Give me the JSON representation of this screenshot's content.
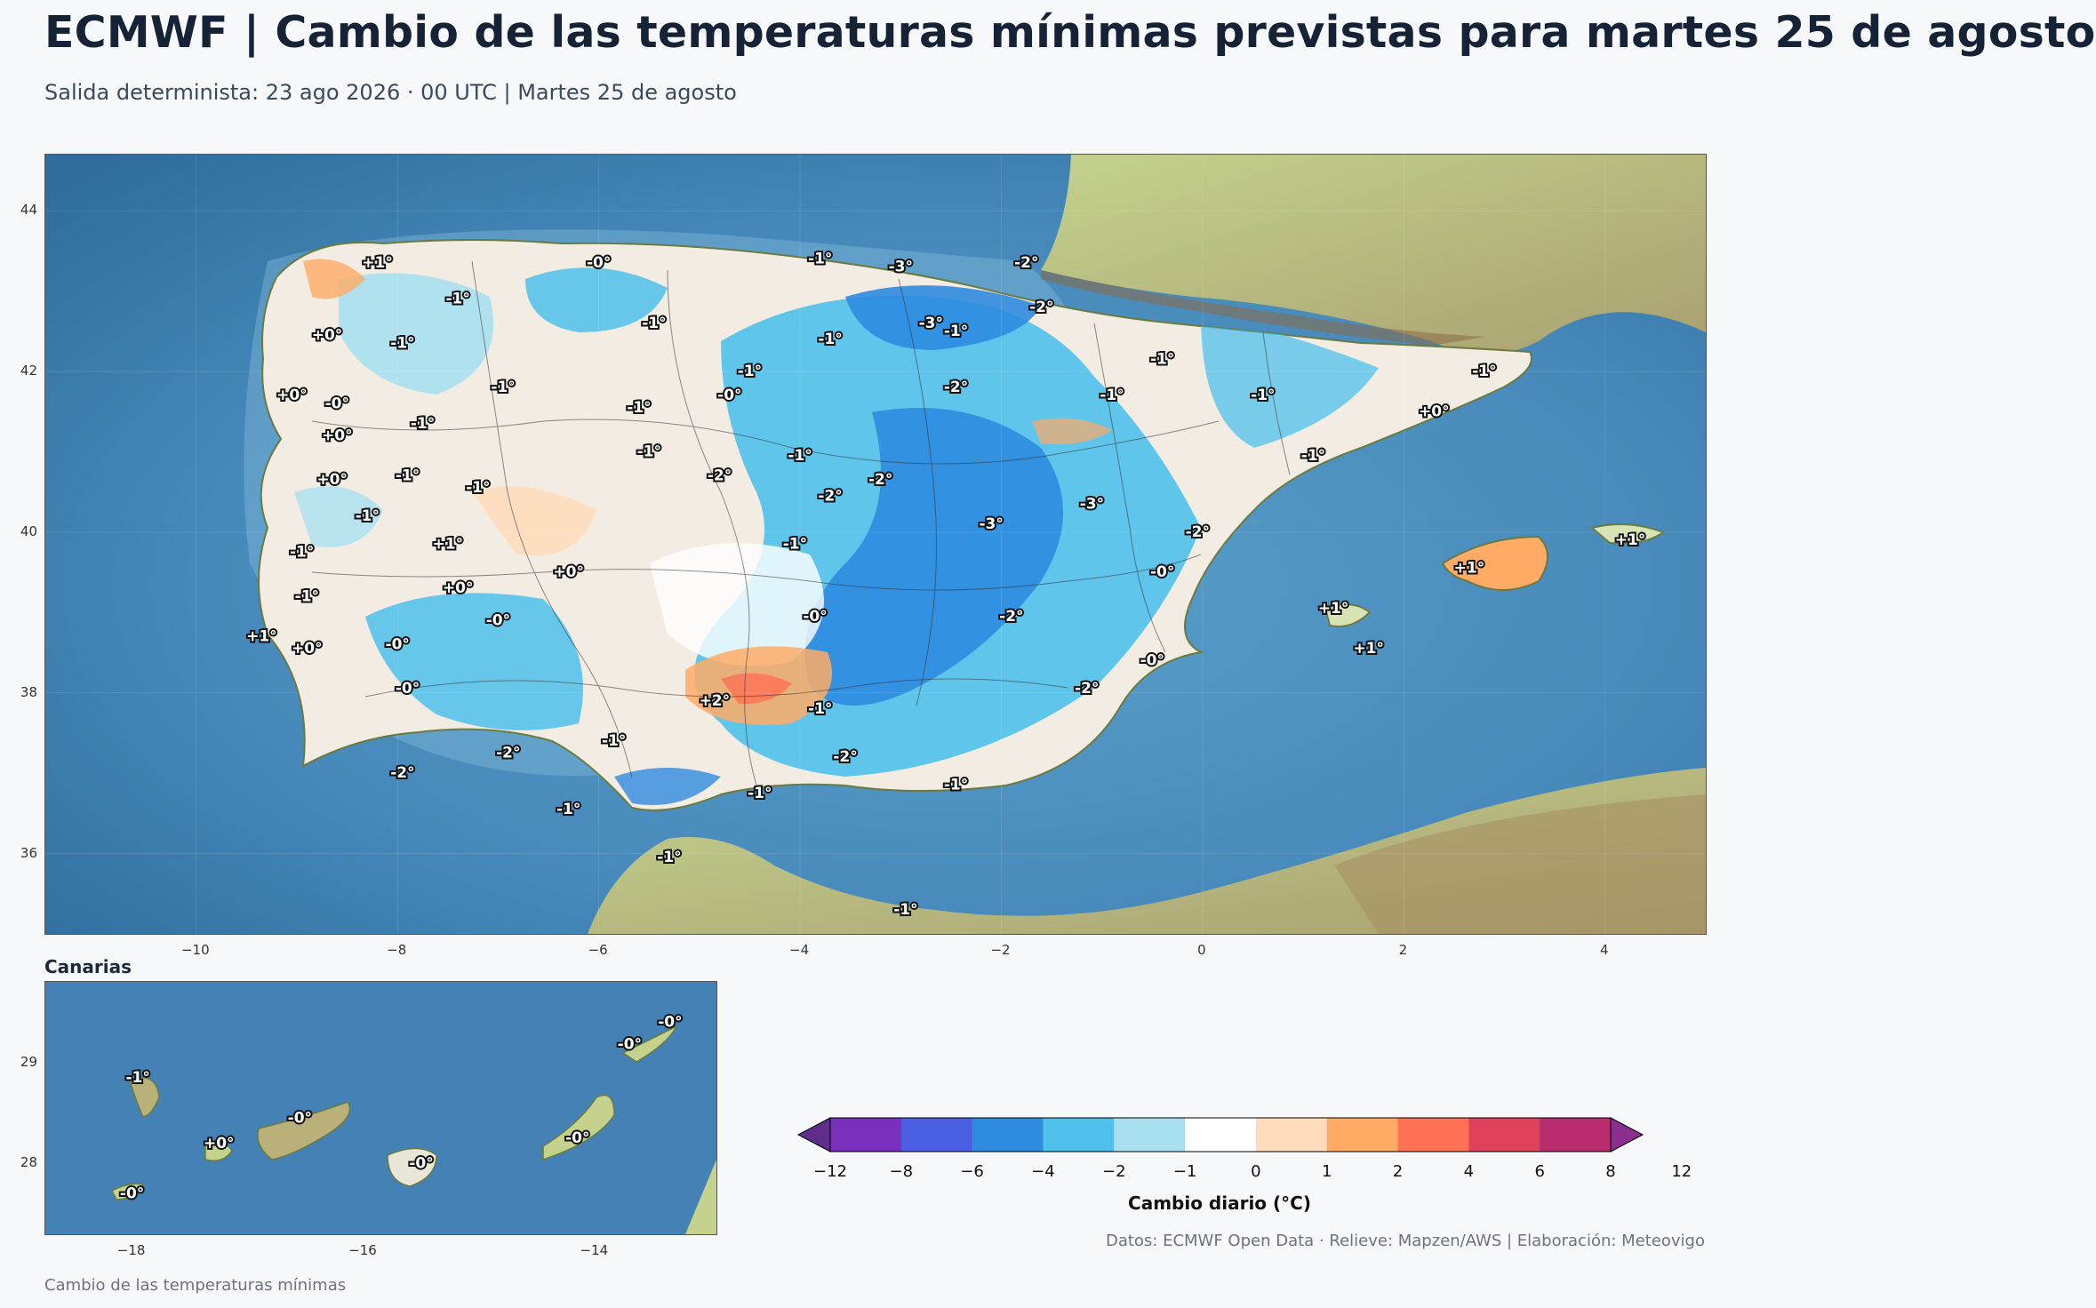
{
  "header": {
    "title": "ECMWF | Cambio de las temperaturas mínimas previstas para martes 25 de agosto",
    "subtitle": "Salida determinista: 23 ago 2026 · 00 UTC  |  Martes 25 de agosto"
  },
  "main_map": {
    "lon_ticks": [
      "−10",
      "−8",
      "−6",
      "−4",
      "−2",
      "0",
      "2",
      "4"
    ],
    "lat_ticks": [
      "44",
      "42",
      "40",
      "38",
      "36"
    ],
    "labels": [
      {
        "lon": -8.2,
        "lat": 43.35,
        "text": "+1°"
      },
      {
        "lon": -6.0,
        "lat": 43.35,
        "text": "-0°"
      },
      {
        "lon": -3.0,
        "lat": 43.3,
        "text": "-3°"
      },
      {
        "lon": -3.8,
        "lat": 43.4,
        "text": "-1°"
      },
      {
        "lon": -1.75,
        "lat": 43.35,
        "text": "-2°"
      },
      {
        "lon": -7.4,
        "lat": 42.9,
        "text": "-1°"
      },
      {
        "lon": -1.6,
        "lat": 42.8,
        "text": "-2°"
      },
      {
        "lon": -5.45,
        "lat": 42.6,
        "text": "-1°"
      },
      {
        "lon": -2.7,
        "lat": 42.6,
        "text": "-3°"
      },
      {
        "lon": -2.45,
        "lat": 42.5,
        "text": "-1°"
      },
      {
        "lon": -8.7,
        "lat": 42.45,
        "text": "+0°"
      },
      {
        "lon": -7.95,
        "lat": 42.35,
        "text": "-1°"
      },
      {
        "lon": -3.7,
        "lat": 42.4,
        "text": "-1°"
      },
      {
        "lon": -4.5,
        "lat": 42.0,
        "text": "-1°"
      },
      {
        "lon": -0.4,
        "lat": 42.15,
        "text": "-1°"
      },
      {
        "lon": 2.8,
        "lat": 42.0,
        "text": "-1°"
      },
      {
        "lon": -6.95,
        "lat": 41.8,
        "text": "-1°"
      },
      {
        "lon": -2.45,
        "lat": 41.8,
        "text": "-2°"
      },
      {
        "lon": -9.05,
        "lat": 41.7,
        "text": "+0°"
      },
      {
        "lon": -4.7,
        "lat": 41.7,
        "text": "-0°"
      },
      {
        "lon": -0.9,
        "lat": 41.7,
        "text": "-1°"
      },
      {
        "lon": 0.6,
        "lat": 41.7,
        "text": "-1°"
      },
      {
        "lon": -8.6,
        "lat": 41.6,
        "text": "-0°"
      },
      {
        "lon": -5.6,
        "lat": 41.55,
        "text": "-1°"
      },
      {
        "lon": 2.3,
        "lat": 41.5,
        "text": "+0°"
      },
      {
        "lon": -7.75,
        "lat": 41.35,
        "text": "-1°"
      },
      {
        "lon": -8.6,
        "lat": 41.2,
        "text": "+0°"
      },
      {
        "lon": 1.1,
        "lat": 40.95,
        "text": "-1°"
      },
      {
        "lon": -5.5,
        "lat": 41.0,
        "text": "-1°"
      },
      {
        "lon": -4.0,
        "lat": 40.95,
        "text": "-1°"
      },
      {
        "lon": -8.65,
        "lat": 40.65,
        "text": "+0°"
      },
      {
        "lon": -7.9,
        "lat": 40.7,
        "text": "-1°"
      },
      {
        "lon": -4.8,
        "lat": 40.7,
        "text": "-2°"
      },
      {
        "lon": -3.2,
        "lat": 40.65,
        "text": "-2°"
      },
      {
        "lon": -7.2,
        "lat": 40.55,
        "text": "-1°"
      },
      {
        "lon": -3.7,
        "lat": 40.45,
        "text": "-2°"
      },
      {
        "lon": -1.1,
        "lat": 40.35,
        "text": "-3°"
      },
      {
        "lon": -8.3,
        "lat": 40.2,
        "text": "-1°"
      },
      {
        "lon": -2.1,
        "lat": 40.1,
        "text": "-3°"
      },
      {
        "lon": -0.05,
        "lat": 40.0,
        "text": "-2°"
      },
      {
        "lon": -7.5,
        "lat": 39.85,
        "text": "+1°"
      },
      {
        "lon": -4.05,
        "lat": 39.85,
        "text": "-1°"
      },
      {
        "lon": 4.25,
        "lat": 39.9,
        "text": "+1°"
      },
      {
        "lon": -8.95,
        "lat": 39.75,
        "text": "-1°"
      },
      {
        "lon": 2.65,
        "lat": 39.55,
        "text": "+1°"
      },
      {
        "lon": -6.3,
        "lat": 39.5,
        "text": "+0°"
      },
      {
        "lon": -0.4,
        "lat": 39.5,
        "text": "-0°"
      },
      {
        "lon": -7.4,
        "lat": 39.3,
        "text": "+0°"
      },
      {
        "lon": -8.9,
        "lat": 39.2,
        "text": "-1°"
      },
      {
        "lon": 1.3,
        "lat": 39.05,
        "text": "+1°"
      },
      {
        "lon": -3.85,
        "lat": 38.95,
        "text": "-0°"
      },
      {
        "lon": -1.9,
        "lat": 38.95,
        "text": "-2°"
      },
      {
        "lon": -7.0,
        "lat": 38.9,
        "text": "-0°"
      },
      {
        "lon": -9.35,
        "lat": 38.7,
        "text": "+1°"
      },
      {
        "lon": -8.9,
        "lat": 38.55,
        "text": "+0°"
      },
      {
        "lon": -8.0,
        "lat": 38.6,
        "text": "-0°"
      },
      {
        "lon": 1.65,
        "lat": 38.55,
        "text": "+1°"
      },
      {
        "lon": -0.5,
        "lat": 38.4,
        "text": "-0°"
      },
      {
        "lon": -7.9,
        "lat": 38.05,
        "text": "-0°"
      },
      {
        "lon": -1.15,
        "lat": 38.05,
        "text": "-2°"
      },
      {
        "lon": -4.85,
        "lat": 37.9,
        "text": "+2°"
      },
      {
        "lon": -3.8,
        "lat": 37.8,
        "text": "-1°"
      },
      {
        "lon": -5.85,
        "lat": 37.4,
        "text": "-1°"
      },
      {
        "lon": -6.9,
        "lat": 37.25,
        "text": "-2°"
      },
      {
        "lon": -3.55,
        "lat": 37.2,
        "text": "-2°"
      },
      {
        "lon": -7.95,
        "lat": 37.0,
        "text": "-2°"
      },
      {
        "lon": -4.4,
        "lat": 36.75,
        "text": "-1°"
      },
      {
        "lon": -2.45,
        "lat": 36.85,
        "text": "-1°"
      },
      {
        "lon": -6.3,
        "lat": 36.55,
        "text": "-1°"
      },
      {
        "lon": -5.3,
        "lat": 35.95,
        "text": "-1°"
      },
      {
        "lon": -2.95,
        "lat": 35.3,
        "text": "-1°"
      }
    ]
  },
  "inset": {
    "title": "Canarias",
    "lon_ticks": [
      "−18",
      "−16",
      "−14"
    ],
    "lat_ticks": [
      "29",
      "28"
    ],
    "labels": [
      {
        "lon": -17.95,
        "lat": 28.85,
        "text": "-1°"
      },
      {
        "lon": -17.25,
        "lat": 28.2,
        "text": "+0°"
      },
      {
        "lon": -16.55,
        "lat": 28.45,
        "text": "-0°"
      },
      {
        "lon": -15.5,
        "lat": 28.0,
        "text": "-0°"
      },
      {
        "lon": -14.15,
        "lat": 28.25,
        "text": "-0°"
      },
      {
        "lon": -13.7,
        "lat": 29.18,
        "text": "-0°"
      },
      {
        "lon": -13.35,
        "lat": 29.4,
        "text": "-0°"
      },
      {
        "lon": -18.0,
        "lat": 27.7,
        "text": "-0°"
      }
    ]
  },
  "colorbar": {
    "label": "Cambio diario (°C)",
    "ticks": [
      "−12",
      "−8",
      "−6",
      "−4",
      "−2",
      "−1",
      "0",
      "1",
      "2",
      "4",
      "6",
      "8",
      "12"
    ],
    "colors": [
      "#5e2e8a",
      "#7b2fbd",
      "#4b5de0",
      "#2f8be0",
      "#4fc1ec",
      "#a9e0f0",
      "#ffffff",
      "#ffdcbb",
      "#ffab66",
      "#ff7155",
      "#e0415a",
      "#b72d6e",
      "#8a2e90"
    ]
  },
  "credits": "Datos: ECMWF Open Data · Relieve: Mapzen/AWS  |  Elaboración: Meteovigo",
  "footer": "Cambio de las temperaturas mínimas"
}
